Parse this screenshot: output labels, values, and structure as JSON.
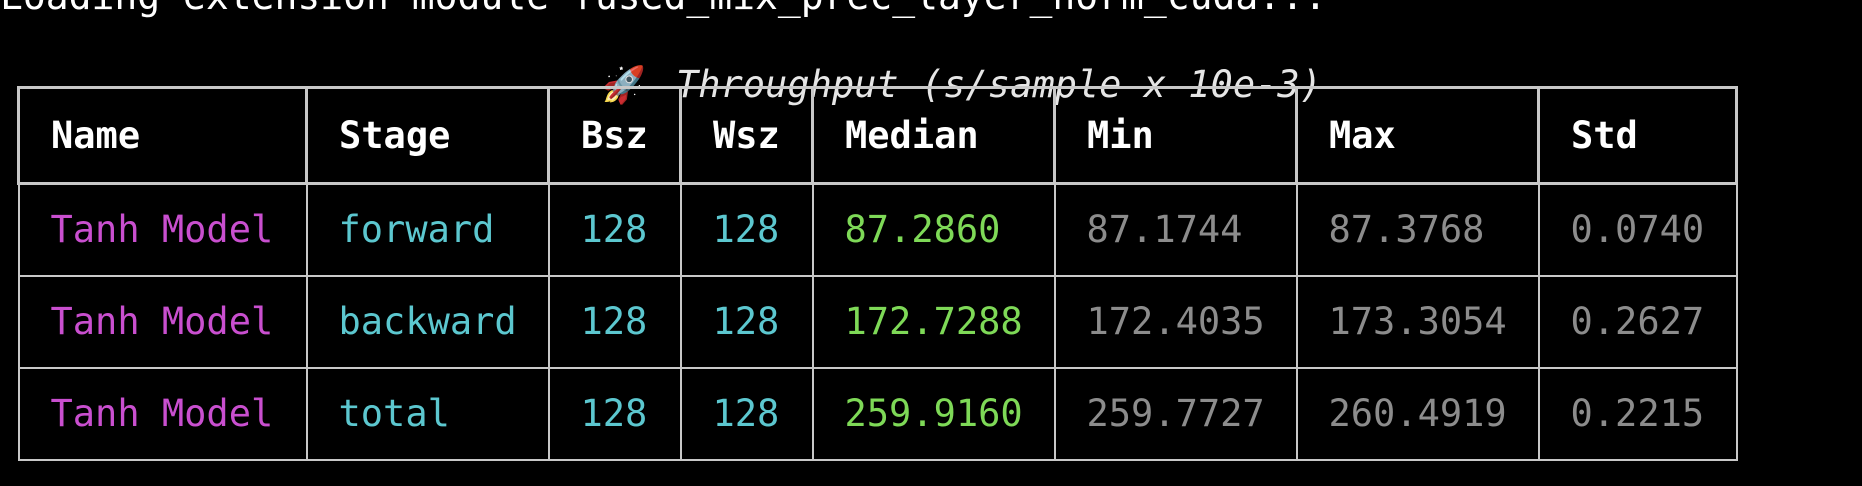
{
  "terminal": {
    "log_line": "Loading extension module fused_mix_prec_layer_norm_cuda...",
    "title_icon": "🚀",
    "title_text": "Throughput (s/sample x 10e-3)"
  },
  "colors": {
    "name": "#c94fcf",
    "stage": "#5cc7cf",
    "size": "#5cc7cf",
    "median": "#7ed957",
    "dim": "#8c8c8c",
    "border": "#c8c8c8",
    "background": "#000000"
  },
  "table": {
    "headers": [
      "Name",
      "Stage",
      "Bsz",
      "Wsz",
      "Median",
      "Min",
      "Max",
      "Std"
    ],
    "rows": [
      [
        "Tanh Model",
        "forward",
        "128",
        "128",
        "87.2860",
        "87.1744",
        "87.3768",
        "0.0740"
      ],
      [
        "Tanh Model",
        "backward",
        "128",
        "128",
        "172.7288",
        "172.4035",
        "173.3054",
        "0.2627"
      ],
      [
        "Tanh Model",
        "total",
        "128",
        "128",
        "259.9160",
        "259.7727",
        "260.4919",
        "0.2215"
      ]
    ]
  }
}
